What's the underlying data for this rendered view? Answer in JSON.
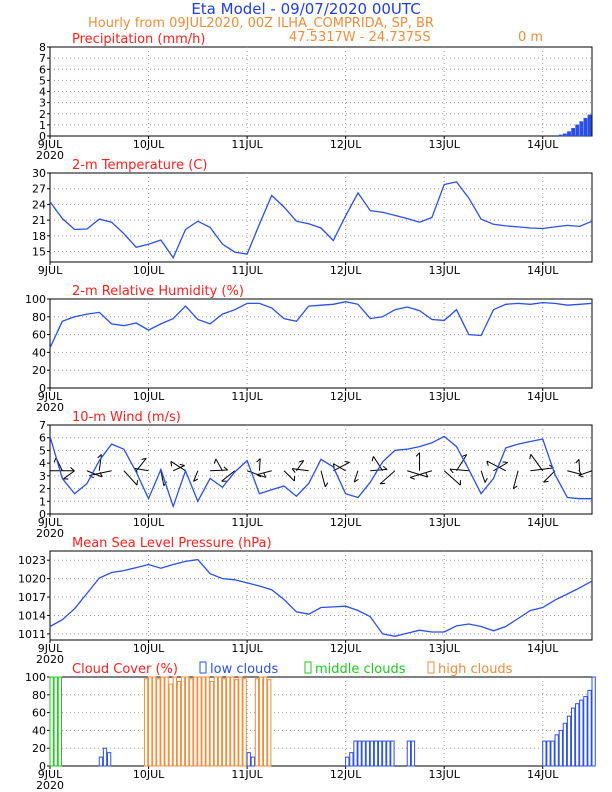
{
  "header": {
    "title": "Eta Model - 09/07/2020 00UTC",
    "subtitle": "Hourly from 09JUL2020, 00Z  ILHA_COMPRIDA, SP, BR",
    "coords": "47.5317W - 24.7375S",
    "elevation": "0   m"
  },
  "colors": {
    "title": "#1f3fd8",
    "subtitle": "#f08c3c",
    "panel_title": "#ff2020",
    "line": "#2a4fe6",
    "low_clouds": "#2a4fe6",
    "middle_clouds": "#21c821",
    "high_clouds": "#f08c3c",
    "wind_barb": "#000000"
  },
  "chart_data": [
    {
      "type": "bar",
      "title": "Precipitation (mm/h)",
      "ylim": [
        0,
        8
      ],
      "yticks": [
        0,
        1,
        2,
        3,
        4,
        5,
        6,
        7,
        8
      ],
      "x_ticks": [
        "9JUL",
        "10JUL",
        "11JUL",
        "12JUL",
        "13JUL",
        "14JUL"
      ],
      "x_extra": "2020",
      "x_range_hours": [
        0,
        132
      ],
      "x_hours": [
        124,
        125,
        126,
        127,
        128,
        129,
        130,
        131
      ],
      "values": [
        0.1,
        0.2,
        0.4,
        0.7,
        1.0,
        1.3,
        1.6,
        1.9
      ]
    },
    {
      "type": "line",
      "title": "2-m Temperature (C)",
      "ylim": [
        13,
        30
      ],
      "yticks": [
        15,
        18,
        21,
        24,
        27,
        30
      ],
      "x_ticks": [
        "9JUL",
        "10JUL",
        "11JUL",
        "12JUL",
        "13JUL",
        "14JUL"
      ],
      "x_extra": "",
      "x_range_hours": [
        0,
        132
      ],
      "x_hours": [
        0,
        3,
        6,
        9,
        12,
        15,
        18,
        21,
        24,
        27,
        30,
        33,
        36,
        39,
        42,
        45,
        48,
        51,
        54,
        57,
        60,
        63,
        66,
        69,
        72,
        75,
        78,
        81,
        84,
        87,
        90,
        93,
        96,
        99,
        102,
        105,
        108,
        111,
        114,
        117,
        120,
        123,
        126,
        129,
        132
      ],
      "values": [
        24.5,
        21.3,
        19.2,
        19.3,
        21.2,
        20.6,
        18.4,
        15.8,
        16.4,
        17.2,
        13.8,
        19.2,
        20.8,
        19.6,
        16.4,
        14.9,
        14.5,
        20.2,
        25.7,
        23.5,
        20.8,
        20.3,
        19.5,
        17.1,
        21.8,
        26.2,
        22.8,
        22.5,
        21.9,
        21.3,
        20.6,
        21.5,
        27.8,
        28.3,
        25.2,
        21.2,
        20.2,
        19.9,
        19.7,
        19.5,
        19.4,
        19.7,
        20.0,
        19.8,
        20.8
      ]
    },
    {
      "type": "line",
      "title": "2-m Relative Humidity (%)",
      "ylim": [
        0,
        100
      ],
      "yticks": [
        0,
        20,
        40,
        60,
        80,
        100
      ],
      "x_ticks": [
        "9JUL",
        "10JUL",
        "11JUL",
        "12JUL",
        "13JUL",
        "14JUL"
      ],
      "x_extra": "2020",
      "x_range_hours": [
        0,
        132
      ],
      "x_hours": [
        0,
        3,
        6,
        9,
        12,
        15,
        18,
        21,
        24,
        27,
        30,
        33,
        36,
        39,
        42,
        45,
        48,
        51,
        54,
        57,
        60,
        63,
        66,
        69,
        72,
        75,
        78,
        81,
        84,
        87,
        90,
        93,
        96,
        99,
        102,
        105,
        108,
        111,
        114,
        117,
        120,
        123,
        126,
        129,
        132
      ],
      "values": [
        45,
        75,
        80,
        83,
        85,
        72,
        70,
        73,
        65,
        72,
        78,
        92,
        77,
        72,
        83,
        88,
        95,
        95,
        90,
        78,
        75,
        92,
        93,
        94,
        97,
        94,
        78,
        80,
        88,
        91,
        87,
        77,
        76,
        88,
        60,
        59,
        88,
        94,
        95,
        94,
        96,
        95,
        93,
        94,
        95
      ]
    },
    {
      "type": "line",
      "title": "10-m Wind (m/s)",
      "ylim": [
        0,
        7
      ],
      "yticks": [
        0,
        1,
        2,
        3,
        4,
        5,
        6,
        7
      ],
      "x_ticks": [
        "9JUL",
        "10JUL",
        "11JUL",
        "12JUL",
        "13JUL",
        "14JUL"
      ],
      "x_extra": "2020",
      "x_range_hours": [
        0,
        132
      ],
      "x_hours": [
        0,
        3,
        6,
        9,
        12,
        15,
        18,
        21,
        24,
        27,
        30,
        33,
        36,
        39,
        42,
        45,
        48,
        51,
        54,
        57,
        60,
        63,
        66,
        69,
        72,
        75,
        78,
        81,
        84,
        87,
        90,
        93,
        96,
        99,
        102,
        105,
        108,
        111,
        114,
        117,
        120,
        123,
        126,
        129,
        132
      ],
      "values": [
        6.1,
        2.8,
        1.6,
        2.4,
        4.2,
        5.5,
        5.1,
        3.3,
        1.2,
        3.5,
        0.6,
        3.4,
        1.0,
        2.8,
        2.1,
        3.3,
        4.2,
        1.6,
        1.9,
        2.2,
        1.4,
        2.4,
        4.3,
        3.7,
        1.6,
        1.3,
        2.5,
        4.1,
        5.0,
        5.1,
        5.3,
        5.6,
        6.1,
        5.3,
        3.5,
        1.6,
        2.8,
        5.2,
        5.5,
        5.7,
        5.9,
        3.1,
        1.3,
        1.2,
        1.2
      ],
      "barb_row": 3.4
    },
    {
      "type": "line",
      "title": "Mean Sea Level Pressure (hPa)",
      "ylim": [
        1010,
        1024.5
      ],
      "yticks": [
        1011,
        1014,
        1017,
        1020,
        1023
      ],
      "x_ticks": [
        "9JUL",
        "10JUL",
        "11JUL",
        "12JUL",
        "13JUL",
        "14JUL"
      ],
      "x_extra": "2020",
      "x_range_hours": [
        0,
        132
      ],
      "x_hours": [
        0,
        3,
        6,
        9,
        12,
        15,
        18,
        21,
        24,
        27,
        30,
        33,
        36,
        39,
        42,
        45,
        48,
        51,
        54,
        57,
        60,
        63,
        66,
        69,
        72,
        75,
        78,
        81,
        84,
        87,
        90,
        93,
        96,
        99,
        102,
        105,
        108,
        111,
        114,
        117,
        120,
        123,
        126,
        129,
        132
      ],
      "values": [
        1012.2,
        1013.3,
        1015.1,
        1017.6,
        1020.1,
        1021.0,
        1021.3,
        1021.8,
        1022.3,
        1021.7,
        1022.3,
        1022.8,
        1023.1,
        1020.8,
        1020.0,
        1019.8,
        1019.3,
        1018.8,
        1018.2,
        1016.6,
        1014.6,
        1014.2,
        1015.3,
        1015.4,
        1015.5,
        1014.8,
        1013.8,
        1011.0,
        1010.6,
        1011.1,
        1011.6,
        1011.3,
        1011.3,
        1012.3,
        1012.6,
        1012.2,
        1011.5,
        1012.2,
        1013.5,
        1014.8,
        1015.3,
        1016.5,
        1017.5,
        1018.5,
        1019.6
      ]
    },
    {
      "type": "bar",
      "title": "Cloud Cover (%)",
      "legend": [
        "low clouds",
        "middle clouds",
        "high clouds"
      ],
      "ylim": [
        0,
        100
      ],
      "yticks": [
        0,
        20,
        40,
        60,
        80,
        100
      ],
      "x_ticks": [
        "9JUL",
        "10JUL",
        "11JUL",
        "12JUL",
        "13JUL",
        "14JUL"
      ],
      "x_extra": "2020",
      "x_range_hours": [
        0,
        132
      ],
      "series": [
        {
          "name": "low clouds",
          "x_hours": [
            0,
            12,
            13,
            14,
            48,
            49,
            72,
            73,
            74,
            75,
            76,
            77,
            78,
            79,
            80,
            81,
            82,
            83,
            87,
            88,
            120,
            121,
            122,
            123,
            124,
            125,
            126,
            127,
            128,
            129,
            130,
            131,
            132
          ],
          "values": [
            20,
            10,
            20,
            15,
            15,
            10,
            10,
            15,
            28,
            28,
            28,
            28,
            28,
            28,
            28,
            28,
            28,
            28,
            28,
            28,
            28,
            28,
            28,
            35,
            40,
            48,
            56,
            65,
            70,
            74,
            78,
            85,
            100
          ]
        },
        {
          "name": "middle clouds",
          "x_hours": [
            0,
            1,
            2
          ],
          "values": [
            100,
            100,
            100
          ]
        },
        {
          "name": "high clouds",
          "x_hours": [
            23,
            24,
            25,
            26,
            27,
            28,
            29,
            30,
            31,
            32,
            33,
            34,
            35,
            36,
            37,
            38,
            39,
            40,
            41,
            42,
            43,
            44,
            45,
            46,
            47,
            50,
            51,
            52,
            53
          ],
          "values": [
            98,
            100,
            100,
            98,
            100,
            100,
            92,
            100,
            95,
            100,
            100,
            98,
            100,
            100,
            100,
            100,
            95,
            100,
            100,
            98,
            100,
            100,
            97,
            100,
            98,
            98,
            100,
            100,
            97
          ]
        }
      ]
    }
  ]
}
